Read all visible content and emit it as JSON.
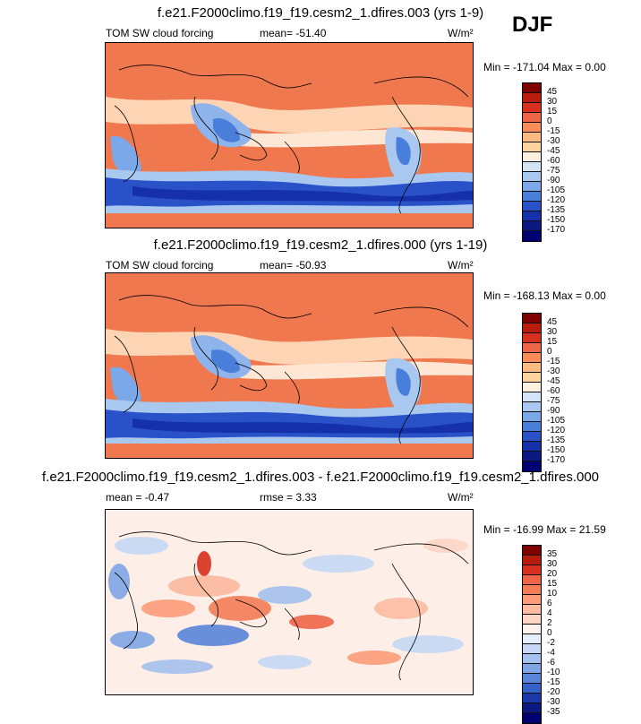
{
  "header": {
    "season": "DJF"
  },
  "panels": [
    {
      "title": "f.e21.F2000climo.f19_f19.cesm2_1.dfires.003 (yrs 1-9)",
      "left_label": "TOM SW cloud forcing",
      "stat_label": "mean= -51.40",
      "units": "W/m²",
      "minmax": "Min = -171.04 Max =   0.00",
      "colorbar": {
        "ticks": [
          "45",
          "30",
          "15",
          "0",
          "-15",
          "-30",
          "-45",
          "-60",
          "-75",
          "-90",
          "-105",
          "-120",
          "-135",
          "-150",
          "-170"
        ],
        "colors": [
          "#7f0000",
          "#b71c0c",
          "#d7301f",
          "#ef6548",
          "#fc8d59",
          "#fdbb84",
          "#fdd49e",
          "#fff0e0",
          "#d4e4f7",
          "#a8c8f0",
          "#7aa8e8",
          "#4a7edb",
          "#2a52c8",
          "#1530a8",
          "#0a1a80",
          "#000070"
        ]
      }
    },
    {
      "title": "f.e21.F2000climo.f19_f19.cesm2_1.dfires.000 (yrs 1-19)",
      "left_label": "TOM SW cloud forcing",
      "stat_label": "mean= -50.93",
      "units": "W/m²",
      "minmax": "Min = -168.13 Max =   0.00",
      "colorbar": {
        "ticks": [
          "45",
          "30",
          "15",
          "0",
          "-15",
          "-30",
          "-45",
          "-60",
          "-75",
          "-90",
          "-105",
          "-120",
          "-135",
          "-150",
          "-170"
        ],
        "colors": [
          "#7f0000",
          "#b71c0c",
          "#d7301f",
          "#ef6548",
          "#fc8d59",
          "#fdbb84",
          "#fdd49e",
          "#fff0e0",
          "#d4e4f7",
          "#a8c8f0",
          "#7aa8e8",
          "#4a7edb",
          "#2a52c8",
          "#1530a8",
          "#0a1a80",
          "#000070"
        ]
      }
    },
    {
      "title": "f.e21.F2000climo.f19_f19.cesm2_1.dfires.003 - f.e21.F2000climo.f19_f19.cesm2_1.dfires.000",
      "left_label": "mean =  -0.47",
      "stat_label": "rmse =  3.33",
      "units": "W/m²",
      "minmax": "Min = -16.99 Max =  21.59",
      "colorbar": {
        "ticks": [
          "35",
          "30",
          "20",
          "15",
          "10",
          "6",
          "4",
          "2",
          "0",
          "-2",
          "-4",
          "-6",
          "-10",
          "-15",
          "-20",
          "-30",
          "-35"
        ],
        "colors": [
          "#7f0000",
          "#b71c0c",
          "#d7301f",
          "#ef6548",
          "#f47c56",
          "#fc9c7a",
          "#fdbca2",
          "#fdd6c6",
          "#fff2ec",
          "#e6eefb",
          "#c6d8f5",
          "#a5c1ee",
          "#7fa5e5",
          "#5a85da",
          "#3560c8",
          "#1a38a8",
          "#0a1a80",
          "#000070"
        ]
      }
    }
  ]
}
